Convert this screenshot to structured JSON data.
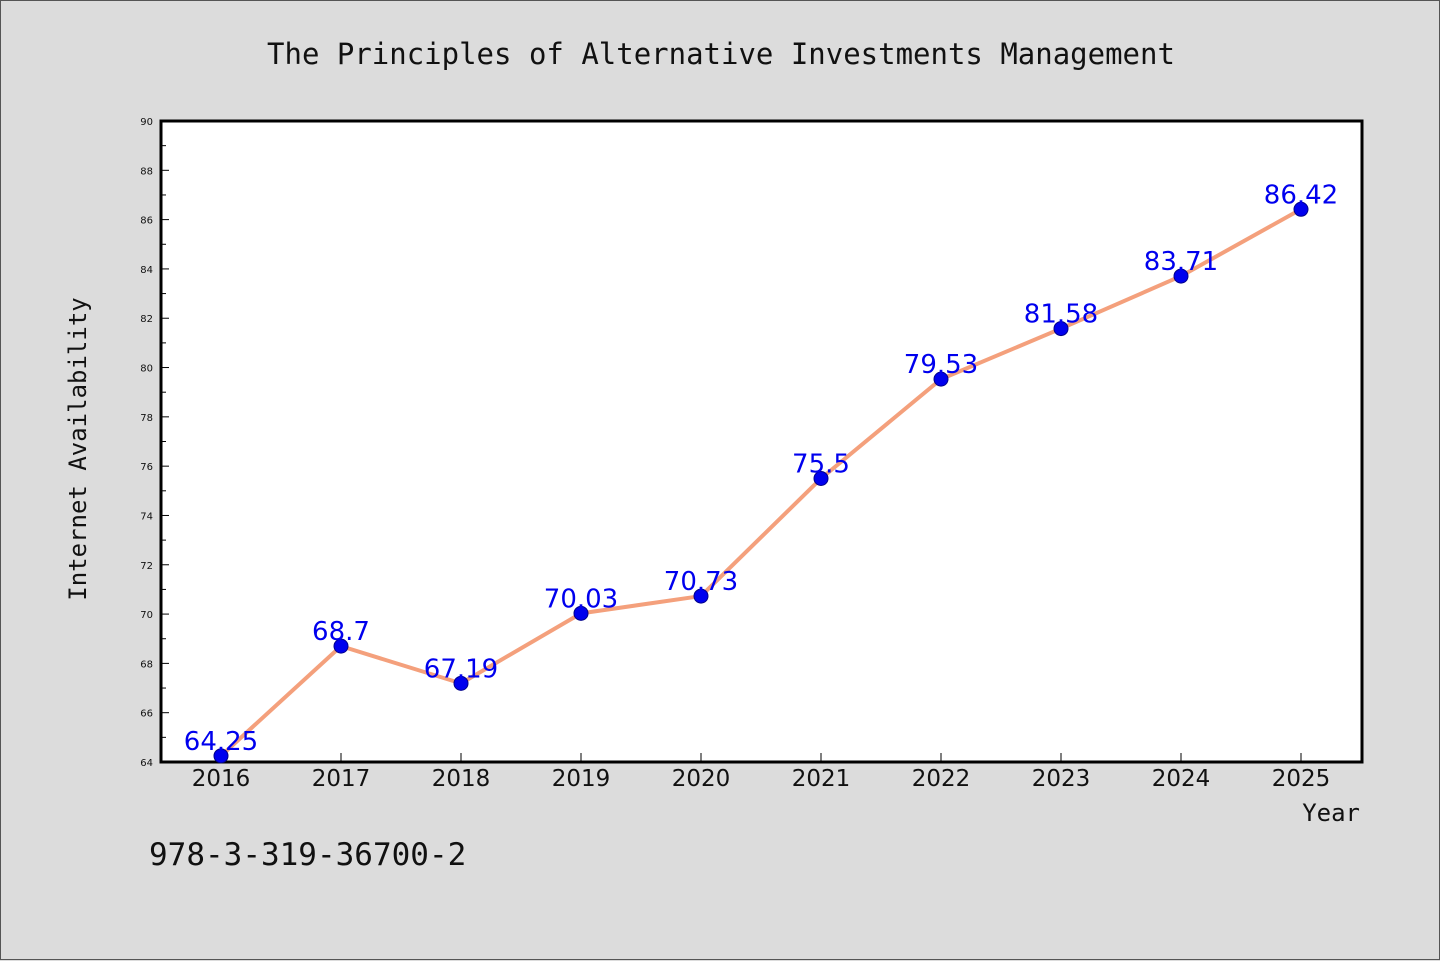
{
  "footnote": "978-3-319-36700-2",
  "colors": {
    "line": "#f4a07c",
    "marker": "#0000ee",
    "marker_edge": "#00008b",
    "label": "#0000ee",
    "background": "#dcdcdc",
    "plot_background": "#ffffff"
  },
  "chart_data": {
    "type": "line",
    "title": "The Principles of Alternative Investments Management",
    "xlabel": "Year",
    "ylabel": "Internet Availability",
    "categories": [
      "2016",
      "2017",
      "2018",
      "2019",
      "2020",
      "2021",
      "2022",
      "2023",
      "2024",
      "2025"
    ],
    "series": [
      {
        "values": [
          64.25,
          68.7,
          67.19,
          70.03,
          70.73,
          75.5,
          79.53,
          81.58,
          83.71,
          86.42
        ]
      }
    ],
    "data_labels": [
      "64.25",
      "68.7",
      "67.19",
      "70.03",
      "70.73",
      "75.5",
      "79.53",
      "81.58",
      "83.71",
      "86.42"
    ],
    "ylim": [
      64,
      90
    ],
    "y_ticks": [
      "64",
      "66",
      "68",
      "70",
      "72",
      "74",
      "76",
      "78",
      "80",
      "82",
      "84",
      "86",
      "88",
      "90"
    ],
    "grid": false,
    "legend": "none"
  }
}
